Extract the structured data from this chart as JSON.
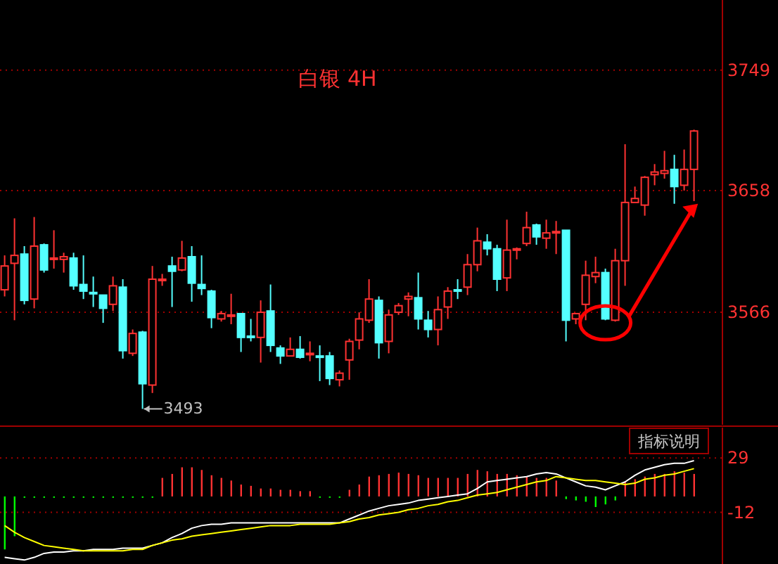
{
  "chart_data": [
    {
      "type": "candlestick",
      "title": "白银 4H",
      "categories": [
        null,
        null,
        null,
        null,
        null,
        null,
        null,
        null,
        null,
        null,
        null,
        null,
        null,
        null,
        null,
        null,
        null,
        null,
        null,
        null,
        null,
        null,
        null,
        null,
        null,
        null,
        null,
        null,
        null,
        null,
        null,
        null,
        null,
        null,
        null,
        null,
        null,
        null,
        null,
        null,
        null,
        null,
        null,
        null,
        null,
        null,
        null,
        null,
        null,
        null,
        null,
        null,
        null,
        null,
        null,
        null,
        null,
        null,
        null,
        null,
        null,
        null,
        null,
        null,
        null,
        null,
        null,
        null,
        null,
        null,
        null
      ],
      "ohlc": [
        [
          3583,
          3609,
          3578,
          3601
        ],
        [
          3603,
          3637,
          3560,
          3609
        ],
        [
          3610,
          3616,
          3572,
          3575
        ],
        [
          3576,
          3638,
          3569,
          3616
        ],
        [
          3617,
          3618,
          3596,
          3598
        ],
        [
          3607,
          3628,
          3599,
          3607
        ],
        [
          3606,
          3611,
          3596,
          3608
        ],
        [
          3607,
          3611,
          3583,
          3586
        ],
        [
          3587,
          3609,
          3576,
          3582
        ],
        [
          3581,
          3593,
          3570,
          3581
        ],
        [
          3579,
          3579,
          3558,
          3569
        ],
        [
          3572,
          3593,
          3567,
          3586
        ],
        [
          3585,
          3591,
          3531,
          3537
        ],
        [
          3535,
          3553,
          3533,
          3550
        ],
        [
          3551,
          3552,
          3493,
          3512
        ],
        [
          3511,
          3601,
          3505,
          3591
        ],
        [
          3591,
          3595,
          3586,
          3591
        ],
        [
          3601,
          3608,
          3570,
          3597
        ],
        [
          3598,
          3620,
          3597,
          3607
        ],
        [
          3608,
          3616,
          3574,
          3588
        ],
        [
          3587,
          3609,
          3579,
          3584
        ],
        [
          3582,
          3583,
          3554,
          3562
        ],
        [
          3561,
          3567,
          3559,
          3565
        ],
        [
          3564,
          3580,
          3557,
          3564
        ],
        [
          3565,
          3565,
          3536,
          3547
        ],
        [
          3548,
          3561,
          3544,
          3548
        ],
        [
          3547,
          3575,
          3528,
          3566
        ],
        [
          3567,
          3587,
          3536,
          3541
        ],
        [
          3539,
          3541,
          3527,
          3533
        ],
        [
          3533,
          3547,
          3533,
          3538
        ],
        [
          3538,
          3548,
          3531,
          3532
        ],
        [
          3535,
          3544,
          3529,
          3535
        ],
        [
          3533,
          3541,
          3514,
          3533
        ],
        [
          3533,
          3536,
          3511,
          3516
        ],
        [
          3515,
          3522,
          3510,
          3520
        ],
        [
          3530,
          3546,
          3515,
          3544
        ],
        [
          3545,
          3566,
          3538,
          3561
        ],
        [
          3560,
          3591,
          3558,
          3576
        ],
        [
          3575,
          3578,
          3531,
          3543
        ],
        [
          3544,
          3568,
          3535,
          3564
        ],
        [
          3566,
          3573,
          3564,
          3571
        ],
        [
          3576,
          3581,
          3563,
          3578
        ],
        [
          3577,
          3596,
          3553,
          3561
        ],
        [
          3560,
          3567,
          3547,
          3553
        ],
        [
          3553,
          3578,
          3541,
          3568
        ],
        [
          3570,
          3585,
          3561,
          3582
        ],
        [
          3583,
          3591,
          3576,
          3583
        ],
        [
          3585,
          3610,
          3579,
          3602
        ],
        [
          3602,
          3630,
          3597,
          3620
        ],
        [
          3619,
          3625,
          3609,
          3614
        ],
        [
          3614,
          3617,
          3582,
          3591
        ],
        [
          3592,
          3636,
          3582,
          3613
        ],
        [
          3614,
          3615,
          3606,
          3614
        ],
        [
          3618,
          3642,
          3616,
          3630
        ],
        [
          3632,
          3633,
          3617,
          3623
        ],
        [
          3622,
          3636,
          3614,
          3626
        ],
        [
          3627,
          3635,
          3610,
          3627
        ],
        [
          3628,
          3628,
          3544,
          3560
        ],
        [
          3561,
          3565,
          3557,
          3565
        ],
        [
          3572,
          3605,
          3560,
          3594
        ],
        [
          3593,
          3608,
          3588,
          3596
        ],
        [
          3596,
          3599,
          3560,
          3561
        ],
        [
          3560,
          3614,
          3559,
          3605
        ],
        [
          3605,
          3693,
          3586,
          3649
        ],
        [
          3649,
          3661,
          3649,
          3652
        ],
        [
          3647,
          3669,
          3639,
          3668
        ],
        [
          3670,
          3678,
          3662,
          3672
        ],
        [
          3671,
          3688,
          3667,
          3673
        ],
        [
          3674,
          3685,
          3648,
          3661
        ],
        [
          3662,
          3689,
          3658,
          3674
        ],
        [
          3674,
          3704,
          3650,
          3703
        ]
      ],
      "colors": [
        "#ff3232",
        "#ff3232",
        "#54ffff",
        "#ff3232",
        "#54ffff",
        "#ff3232",
        "#ff3232",
        "#54ffff",
        "#54ffff",
        "#54ffff",
        "#54ffff",
        "#ff3232",
        "#54ffff",
        "#ff3232",
        "#54ffff",
        "#ff3232",
        "#ff3232",
        "#54ffff",
        "#ff3232",
        "#54ffff",
        "#54ffff",
        "#54ffff",
        "#ff3232",
        "#ff3232",
        "#54ffff",
        "#54ffff",
        "#ff3232",
        "#54ffff",
        "#54ffff",
        "#ff3232",
        "#54ffff",
        "#ff3232",
        "#54ffff",
        "#54ffff",
        "#ff3232",
        "#ff3232",
        "#ff3232",
        "#ff3232",
        "#54ffff",
        "#ff3232",
        "#ff3232",
        "#ff3232",
        "#54ffff",
        "#54ffff",
        "#ff3232",
        "#ff3232",
        "#54ffff",
        "#ff3232",
        "#ff3232",
        "#54ffff",
        "#54ffff",
        "#ff3232",
        "#ff3232",
        "#ff3232",
        "#54ffff",
        "#ff3232",
        "#ff3232",
        "#54ffff",
        "#ff3232",
        "#ff3232",
        "#ff3232",
        "#54ffff",
        "#ff3232",
        "#ff3232",
        "#ff3232",
        "#ff3232",
        "#ff3232",
        "#ff3232",
        "#54ffff",
        "#ff3232",
        "#ff3232"
      ],
      "ylim": [
        3481,
        3802
      ],
      "yticks": [
        3566,
        3658,
        3749
      ],
      "grid": "y",
      "annotations": [
        "3493"
      ]
    },
    {
      "type": "bar",
      "categories": [
        null,
        null,
        null,
        null,
        null,
        null,
        null,
        null,
        null,
        null,
        null,
        null,
        null,
        null,
        null,
        null,
        null,
        null,
        null,
        null,
        null,
        null,
        null,
        null,
        null,
        null,
        null,
        null,
        null,
        null,
        null,
        null,
        null,
        null,
        null,
        null,
        null,
        null,
        null,
        null,
        null,
        null,
        null,
        null,
        null,
        null,
        null,
        null,
        null,
        null,
        null,
        null,
        null,
        null,
        null,
        null,
        null,
        null,
        null,
        null,
        null,
        null,
        null,
        null,
        null,
        null,
        null,
        null,
        null,
        null,
        null
      ],
      "series": [
        {
          "type": "bar",
          "values": [
            -40,
            -30,
            -1,
            -1,
            -1,
            -1,
            -1,
            -1,
            -1,
            -1,
            -1,
            -1,
            -1,
            -1,
            -1,
            -1,
            14,
            17,
            22,
            22,
            20,
            16,
            14,
            12,
            9,
            8,
            6,
            6,
            5,
            5,
            4,
            4,
            -1,
            -1,
            -1,
            5,
            9,
            15,
            16,
            17,
            18,
            17,
            16,
            14,
            14,
            14,
            14,
            17,
            20,
            19,
            17,
            17,
            16,
            15,
            14,
            14,
            12,
            -2,
            -3,
            -4,
            -8,
            -6,
            -3,
            11,
            13,
            15,
            17,
            17,
            19,
            18,
            17
          ],
          "colors": [
            "#00ff00",
            "#00ff00",
            "#00ff00",
            "#00ff00",
            "#00ff00",
            "#00ff00",
            "#00ff00",
            "#00ff00",
            "#00ff00",
            "#00ff00",
            "#00ff00",
            "#00ff00",
            "#00ff00",
            "#00ff00",
            "#00ff00",
            "#00ff00",
            "#ff3232",
            "#ff3232",
            "#ff3232",
            "#ff3232",
            "#ff3232",
            "#ff3232",
            "#ff3232",
            "#ff3232",
            "#ff3232",
            "#ff3232",
            "#ff3232",
            "#ff3232",
            "#ff3232",
            "#ff3232",
            "#ff3232",
            "#ff3232",
            "#00ff00",
            "#00ff00",
            "#00ff00",
            "#ff3232",
            "#ff3232",
            "#ff3232",
            "#ff3232",
            "#ff3232",
            "#ff3232",
            "#ff3232",
            "#ff3232",
            "#ff3232",
            "#ff3232",
            "#ff3232",
            "#ff3232",
            "#ff3232",
            "#ff3232",
            "#ff3232",
            "#ff3232",
            "#ff3232",
            "#ff3232",
            "#ff3232",
            "#ff3232",
            "#ff3232",
            "#ff3232",
            "#00ff00",
            "#00ff00",
            "#00ff00",
            "#00ff00",
            "#00ff00",
            "#00ff00",
            "#ff3232",
            "#ff3232",
            "#ff3232",
            "#ff3232",
            "#ff3232",
            "#ff3232",
            "#ff3232",
            "#ff3232"
          ]
        },
        {
          "type": "line",
          "color": "#ffffff",
          "values": [
            -46,
            -47,
            -48,
            -46,
            -43,
            -42,
            -42,
            -41,
            -41,
            -40,
            -40,
            -40,
            -39,
            -39,
            -39,
            -37,
            -35,
            -31,
            -28,
            -24,
            -22,
            -21,
            -21,
            -20,
            -20,
            -20,
            -20,
            -20,
            -20,
            -20,
            -20,
            -20,
            -20,
            -20,
            -20,
            -17,
            -14,
            -11,
            -9,
            -7,
            -6,
            -5,
            -3,
            -2,
            -1,
            0,
            1,
            2,
            6,
            11,
            12,
            13,
            14,
            15,
            17,
            18,
            17,
            14,
            11,
            8,
            7,
            5,
            8,
            11,
            16,
            20,
            22,
            24,
            25,
            25,
            27
          ]
        },
        {
          "type": "line",
          "color": "#ffff00",
          "values": [
            -22,
            -27,
            -31,
            -34,
            -37,
            -38,
            -39,
            -40,
            -41,
            -41,
            -41,
            -41,
            -41,
            -40,
            -40,
            -37,
            -35,
            -33,
            -32,
            -30,
            -29,
            -28,
            -27,
            -26,
            -25,
            -24,
            -23,
            -22,
            -22,
            -22,
            -21,
            -21,
            -21,
            -21,
            -20,
            -19,
            -17,
            -16,
            -14,
            -13,
            -12,
            -10,
            -9,
            -7,
            -6,
            -4,
            -3,
            -1,
            1,
            2,
            3,
            5,
            7,
            9,
            11,
            12,
            15,
            14,
            13,
            12,
            12,
            11,
            10,
            9,
            10,
            13,
            14,
            16,
            17,
            19,
            21
          ]
        }
      ],
      "ylim": [
        -51,
        52
      ],
      "yticks": [
        29,
        -12
      ],
      "grid": "y",
      "annotations": [
        "指标说明"
      ]
    }
  ]
}
